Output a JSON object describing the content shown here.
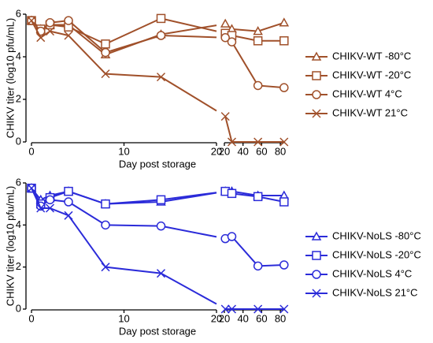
{
  "chart_data": [
    {
      "type": "line",
      "y_label": "CHIKV titer (log10 pfu/mL)",
      "x_label": "Day post storage",
      "x": [
        0,
        1,
        2,
        4,
        8,
        14,
        21,
        28,
        56,
        84
      ],
      "xlim": [
        0,
        20
      ],
      "xticks": [
        0,
        10,
        20
      ],
      "x2lim": [
        20,
        85
      ],
      "x2ticks": [
        20,
        40,
        60,
        80
      ],
      "ylim": [
        0,
        6
      ],
      "yticks": [
        0,
        2,
        4,
        6
      ],
      "legend": "right",
      "series": [
        {
          "name": "CHIKV-WT -80°C",
          "color": "#a0502a",
          "marker": "triangle",
          "values": [
            5.7,
            5.3,
            5.5,
            5.5,
            4.1,
            5.05,
            5.55,
            5.3,
            5.2,
            5.6
          ]
        },
        {
          "name": "CHIKV-WT -20°C",
          "color": "#a0502a",
          "marker": "square",
          "values": [
            5.7,
            5.3,
            5.5,
            5.4,
            4.6,
            5.8,
            5.1,
            5.0,
            4.75,
            4.75
          ]
        },
        {
          "name": "CHIKV-WT 4°C",
          "color": "#a0502a",
          "marker": "circle",
          "values": [
            5.7,
            5.2,
            5.6,
            5.7,
            4.2,
            5.0,
            4.9,
            4.7,
            2.65,
            2.55
          ]
        },
        {
          "name": "CHIKV-WT 21°C",
          "color": "#a0502a",
          "marker": "cross",
          "values": [
            5.7,
            4.9,
            5.2,
            5.0,
            3.2,
            3.05,
            1.2,
            0,
            0,
            0
          ]
        }
      ]
    },
    {
      "type": "line",
      "y_label": "CHIKV titer (log10 pfu/mL)",
      "x_label": "Day post storage",
      "x": [
        0,
        1,
        2,
        4,
        8,
        14,
        21,
        28,
        56,
        84
      ],
      "xlim": [
        0,
        20
      ],
      "xticks": [
        0,
        10,
        20
      ],
      "x2lim": [
        20,
        85
      ],
      "x2ticks": [
        20,
        40,
        60,
        80
      ],
      "ylim": [
        0,
        6
      ],
      "yticks": [
        0,
        2,
        4,
        6
      ],
      "legend": "right",
      "series": [
        {
          "name": "CHIKV-NoLS -80°C",
          "color": "#2b2bd9",
          "marker": "triangle",
          "values": [
            5.75,
            5.2,
            5.4,
            5.6,
            5.0,
            5.1,
            5.6,
            5.6,
            5.4,
            5.4
          ]
        },
        {
          "name": "CHIKV-NoLS -20°C",
          "color": "#2b2bd9",
          "marker": "square",
          "values": [
            5.75,
            5.0,
            5.3,
            5.6,
            5.0,
            5.2,
            5.6,
            5.5,
            5.35,
            5.1
          ]
        },
        {
          "name": "CHIKV-NoLS 4°C",
          "color": "#2b2bd9",
          "marker": "circle",
          "values": [
            5.75,
            4.9,
            5.2,
            5.1,
            4.0,
            3.95,
            3.35,
            3.45,
            2.05,
            2.1
          ]
        },
        {
          "name": "CHIKV-NoLS 21°C",
          "color": "#2b2bd9",
          "marker": "cross",
          "values": [
            5.75,
            4.8,
            4.8,
            4.45,
            2.0,
            1.7,
            0,
            0,
            0,
            0
          ]
        }
      ]
    }
  ]
}
